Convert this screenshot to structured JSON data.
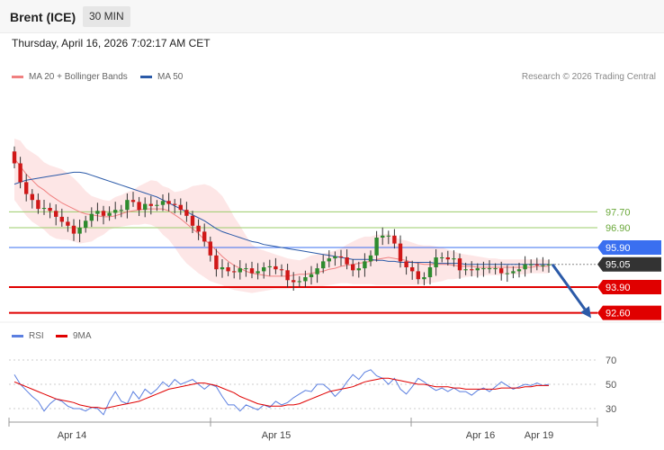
{
  "instrument": {
    "title": "Brent (ICE)",
    "timeframe": "30 MIN"
  },
  "datetime": "Thursday, April 16, 2026 7:02:17 AM CET",
  "copyright": "Research © 2026 Trading Central",
  "colors": {
    "bull": "#2e8b2e",
    "bear": "#d01818",
    "ma20": "#f08080",
    "bands": "#fde2e2",
    "ma50": "#2b5aa8",
    "support": "#e00000",
    "resistance_green": "#9bcc6a",
    "pivot": "#3a6ff0",
    "arrow": "#2b5aa8",
    "rsi": "#5b7fe0",
    "rsi_ma": "#e00000"
  },
  "chart_data": [
    {
      "type": "candlestick",
      "title": "Brent (ICE)",
      "x_labels": [
        "Apr 14",
        "Apr 15",
        "Apr 16",
        "Apr 19"
      ],
      "legend": [
        {
          "name": "MA 20 + Bollinger Bands",
          "color": "#f08080"
        },
        {
          "name": "MA 50",
          "color": "#2b5aa8"
        }
      ],
      "levels": [
        {
          "label": "97.70",
          "value": 97.7,
          "style": "line",
          "color": "#9bcc6a"
        },
        {
          "label": "96.90",
          "value": 96.9,
          "style": "line",
          "color": "#9bcc6a"
        },
        {
          "label": "95.90",
          "value": 95.9,
          "style": "tag",
          "color": "#3a6ff0"
        },
        {
          "label": "95.05",
          "value": 95.05,
          "style": "tag",
          "color": "#333333"
        },
        {
          "label": "93.90",
          "value": 93.9,
          "style": "tag",
          "color": "#e00000"
        },
        {
          "label": "92.60",
          "value": 92.6,
          "style": "tag",
          "color": "#e00000"
        }
      ],
      "close": [
        100.15,
        99.2,
        98.6,
        98.3,
        97.85,
        97.9,
        97.75,
        97.45,
        97.2,
        97.0,
        96.6,
        96.9,
        97.25,
        97.6,
        97.75,
        97.5,
        97.65,
        97.8,
        97.8,
        98.3,
        98.2,
        97.8,
        98.1,
        98.0,
        98.05,
        98.25,
        98.1,
        98.05,
        97.8,
        97.5,
        97.0,
        96.7,
        96.2,
        95.5,
        94.8,
        94.9,
        94.7,
        94.65,
        94.85,
        94.85,
        94.6,
        94.7,
        94.9,
        94.95,
        94.8,
        94.75,
        94.25,
        94.15,
        94.2,
        94.4,
        94.55,
        94.85,
        95.2,
        95.35,
        95.45,
        95.4,
        95.05,
        94.75,
        94.85,
        95.2,
        95.5,
        96.4,
        96.5,
        96.5,
        96.1,
        95.2,
        94.9,
        94.7,
        94.3,
        94.4,
        94.9,
        95.4,
        95.4,
        95.3,
        95.35,
        94.75,
        94.8,
        94.75,
        94.85,
        94.85,
        94.85,
        94.85,
        94.6,
        94.6,
        94.7,
        94.8,
        95.05,
        95.05,
        95.0,
        95.0,
        95.05
      ],
      "bb_upper": [
        101.4,
        101.3,
        100.9,
        100.7,
        100.5,
        100.2,
        100.05,
        99.95,
        99.85,
        99.65,
        99.4,
        99.1,
        98.75,
        98.5,
        98.4,
        98.3,
        98.25,
        98.45,
        98.55,
        98.7,
        98.8,
        99.0,
        99.15,
        99.3,
        99.25,
        99.0,
        98.9,
        98.7,
        98.75,
        98.85,
        99.0,
        99.05,
        99.1,
        99.0,
        98.8,
        98.5,
        98.0,
        97.45,
        97.0,
        96.5,
        96.05,
        95.85,
        95.75,
        95.65,
        95.55,
        95.45,
        95.35,
        95.3,
        95.25,
        95.35,
        95.5,
        95.55,
        95.6,
        95.65,
        95.75,
        95.85,
        96.05,
        96.2,
        96.35,
        96.45,
        96.45,
        96.55,
        96.55,
        96.6,
        96.45,
        96.3,
        96.25,
        96.15,
        96.05,
        96.0,
        96.0,
        95.95,
        95.9,
        95.8,
        95.7,
        95.6,
        95.55,
        95.5,
        95.45,
        95.4,
        95.35,
        95.35,
        95.3,
        95.3,
        95.3,
        95.3,
        95.3,
        95.3,
        95.3,
        95.3,
        95.25
      ],
      "bb_lower": [
        98.3,
        97.9,
        97.5,
        97.2,
        97.0,
        96.8,
        96.5,
        96.35,
        96.3,
        96.3,
        96.2,
        96.1,
        96.15,
        96.2,
        96.4,
        96.55,
        96.8,
        96.9,
        96.95,
        97.0,
        97.05,
        97.05,
        97.1,
        97.05,
        96.9,
        96.55,
        96.3,
        95.9,
        95.45,
        95.1,
        94.85,
        94.6,
        94.4,
        94.2,
        94.1,
        94.0,
        93.85,
        93.75,
        93.7,
        93.65,
        93.6,
        93.65,
        93.7,
        93.75,
        93.8,
        93.8,
        93.8,
        93.85,
        93.85,
        93.85,
        93.85,
        93.9,
        93.95,
        94.0,
        94.05,
        94.1,
        94.1,
        94.05,
        94.05,
        94.05,
        94.05,
        94.0,
        94.0,
        94.0,
        94.0,
        94.0,
        94.0,
        94.0,
        94.0,
        94.05,
        94.1,
        94.15,
        94.2,
        94.3,
        94.3,
        94.35,
        94.4,
        94.45,
        94.45,
        94.5,
        94.5,
        94.5,
        94.5,
        94.55,
        94.55,
        94.55,
        94.55,
        94.6,
        94.6,
        94.6,
        94.6
      ],
      "ma20": [
        100.4,
        100.0,
        99.6,
        99.3,
        99.0,
        98.8,
        98.55,
        98.35,
        98.15,
        98.0,
        97.85,
        97.7,
        97.6,
        97.55,
        97.5,
        97.45,
        97.45,
        97.5,
        97.6,
        97.7,
        97.75,
        97.8,
        97.85,
        97.85,
        97.85,
        97.85,
        97.75,
        97.55,
        97.35,
        97.1,
        96.85,
        96.6,
        96.3,
        96.05,
        95.75,
        95.45,
        95.2,
        95.0,
        94.85,
        94.7,
        94.6,
        94.55,
        94.5,
        94.45,
        94.45,
        94.45,
        94.45,
        94.5,
        94.55,
        94.55,
        94.6,
        94.65,
        94.7,
        94.8,
        94.85,
        94.95,
        95.0,
        95.05,
        95.1,
        95.15,
        95.2,
        95.3,
        95.35,
        95.4,
        95.35,
        95.3,
        95.25,
        95.15,
        95.1,
        95.05,
        95.05,
        95.05,
        95.05,
        95.05,
        95.0,
        94.95,
        94.95,
        94.95,
        94.9,
        94.9,
        94.9,
        94.9,
        94.9,
        94.9,
        94.9,
        94.9,
        94.9,
        94.9,
        94.95,
        94.95,
        94.95
      ],
      "ma50": [
        99.1,
        99.2,
        99.3,
        99.35,
        99.4,
        99.45,
        99.5,
        99.55,
        99.6,
        99.65,
        99.7,
        99.7,
        99.65,
        99.55,
        99.45,
        99.35,
        99.25,
        99.15,
        99.05,
        98.95,
        98.85,
        98.75,
        98.65,
        98.55,
        98.45,
        98.3,
        98.15,
        98.0,
        97.85,
        97.7,
        97.55,
        97.4,
        97.25,
        97.05,
        96.85,
        96.7,
        96.6,
        96.5,
        96.4,
        96.3,
        96.2,
        96.15,
        96.05,
        96.0,
        95.95,
        95.9,
        95.85,
        95.8,
        95.75,
        95.7,
        95.65,
        95.6,
        95.55,
        95.5,
        95.45,
        95.4,
        95.35,
        95.3,
        95.3,
        95.3,
        95.3,
        95.25,
        95.25,
        95.2,
        95.2,
        95.15,
        95.15,
        95.15,
        95.15,
        95.15,
        95.15,
        95.1,
        95.1,
        95.1,
        95.1,
        95.1,
        95.05,
        95.05,
        95.05,
        95.05,
        95.05,
        95.05,
        95.05,
        95.05,
        95.05,
        95.05,
        95.05,
        95.05,
        95.05,
        95.05,
        95.05
      ],
      "forecast": {
        "from": 95.05,
        "to": 92.6
      }
    },
    {
      "type": "line",
      "title": "RSI",
      "legend": [
        {
          "name": "RSI",
          "color": "#5b7fe0"
        },
        {
          "name": "9MA",
          "color": "#e00000"
        }
      ],
      "yticks": [
        "70",
        "50",
        "30"
      ],
      "ylim": [
        20,
        80
      ],
      "series": [
        {
          "name": "RSI",
          "values": [
            58,
            50,
            45,
            40,
            36,
            28,
            34,
            38,
            36,
            32,
            30,
            30,
            28,
            31,
            30,
            25,
            36,
            44,
            36,
            34,
            44,
            38,
            46,
            42,
            46,
            52,
            48,
            54,
            50,
            52,
            54,
            50,
            46,
            50,
            48,
            40,
            33,
            33,
            28,
            33,
            31,
            29,
            33,
            31,
            36,
            33,
            35,
            39,
            42,
            45,
            44,
            50,
            50,
            46,
            40,
            45,
            52,
            58,
            54,
            60,
            62,
            57,
            55,
            50,
            55,
            46,
            42,
            48,
            55,
            52,
            48,
            45,
            47,
            44,
            47,
            44,
            44,
            41,
            45,
            47,
            44,
            48,
            52,
            49,
            46,
            48,
            50,
            49,
            51,
            49,
            50
          ]
        },
        {
          "name": "9MA",
          "values": [
            52,
            50,
            48,
            46,
            44,
            42,
            40,
            38,
            37,
            36,
            35,
            33,
            32,
            31,
            31,
            30,
            31,
            32,
            33,
            34,
            35,
            36,
            38,
            40,
            42,
            44,
            46,
            47,
            48,
            49,
            50,
            51,
            51,
            50,
            49,
            47,
            45,
            43,
            40,
            38,
            36,
            34,
            33,
            32,
            32,
            32,
            33,
            33,
            34,
            36,
            38,
            40,
            42,
            44,
            45,
            46,
            47,
            48,
            50,
            52,
            53,
            54,
            55,
            55,
            54,
            53,
            52,
            51,
            50,
            50,
            49,
            48,
            48,
            48,
            47,
            47,
            46,
            46,
            46,
            46,
            46,
            46,
            47,
            47,
            47,
            47,
            48,
            48,
            49,
            49,
            49
          ]
        }
      ]
    }
  ]
}
